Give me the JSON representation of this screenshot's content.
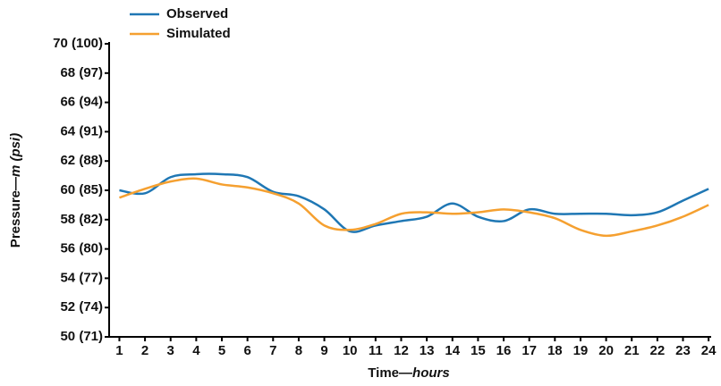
{
  "chart_data": {
    "type": "line",
    "x_label": "Time—",
    "x_label_unit": "hours",
    "y_label": "Pressure—",
    "y_label_unit": "m (psi)",
    "x": [
      1,
      2,
      3,
      4,
      5,
      6,
      7,
      8,
      9,
      10,
      11,
      12,
      13,
      14,
      15,
      16,
      17,
      18,
      19,
      20,
      21,
      22,
      23,
      24
    ],
    "series": [
      {
        "name": "Observed",
        "color": "#1f77b4",
        "values": [
          60.0,
          59.8,
          60.9,
          61.1,
          61.1,
          60.9,
          59.9,
          59.6,
          58.7,
          57.2,
          57.6,
          57.9,
          58.2,
          59.1,
          58.2,
          57.9,
          58.7,
          58.4,
          58.4,
          58.4,
          58.3,
          58.5,
          59.3,
          60.1
        ]
      },
      {
        "name": "Simulated",
        "color": "#f5a030",
        "values": [
          59.5,
          60.1,
          60.6,
          60.8,
          60.4,
          60.2,
          59.8,
          59.1,
          57.6,
          57.3,
          57.7,
          58.4,
          58.5,
          58.4,
          58.5,
          58.7,
          58.5,
          58.1,
          57.3,
          56.9,
          57.2,
          57.6,
          58.2,
          59.0
        ]
      }
    ],
    "xlim": [
      0.6,
      24.1
    ],
    "xticks": [
      1,
      2,
      3,
      4,
      5,
      6,
      7,
      8,
      9,
      10,
      11,
      12,
      13,
      14,
      15,
      16,
      17,
      18,
      19,
      20,
      21,
      22,
      23,
      24
    ],
    "ylim": [
      50,
      70
    ],
    "yticks": [
      {
        "value": 50,
        "label": "50 (71)"
      },
      {
        "value": 52,
        "label": "52 (74)"
      },
      {
        "value": 54,
        "label": "54 (77)"
      },
      {
        "value": 56,
        "label": "56 (80)"
      },
      {
        "value": 58,
        "label": "58 (82)"
      },
      {
        "value": 60,
        "label": "60 (85)"
      },
      {
        "value": 62,
        "label": "62 (88)"
      },
      {
        "value": 64,
        "label": "64 (91)"
      },
      {
        "value": 66,
        "label": "66 (94)"
      },
      {
        "value": 68,
        "label": "68 (97)"
      },
      {
        "value": 70,
        "label": "70 (100)"
      }
    ],
    "grid": false,
    "legend": "top-left"
  }
}
